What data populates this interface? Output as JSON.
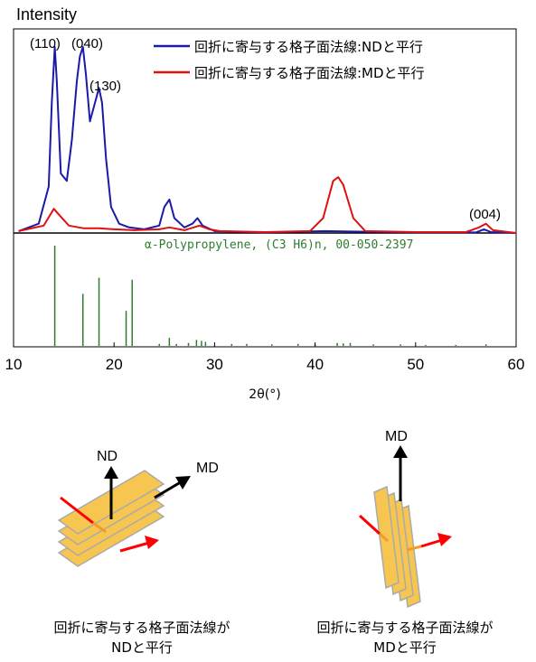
{
  "chart_data": {
    "type": "line",
    "ylabel": "Intensity",
    "xlabel": "2θ(°)",
    "xlim": [
      10,
      60
    ],
    "x_ticks": [
      "10",
      "20",
      "30",
      "40",
      "50",
      "60"
    ],
    "grid": false,
    "legend_position": "top-right",
    "series": [
      {
        "name": "回折に寄与する格子面法線:NDと平行",
        "color": "#1a1aa8",
        "x": [
          10.5,
          12.5,
          13.5,
          13.8,
          14.1,
          14.3,
          14.7,
          15.3,
          15.8,
          16.3,
          16.6,
          16.9,
          17.2,
          17.6,
          18.0,
          18.5,
          18.8,
          19.2,
          19.7,
          20.5,
          21.5,
          23.0,
          24.5,
          25.0,
          25.5,
          26.0,
          27.0,
          27.8,
          28.3,
          28.8,
          30.0,
          35.0,
          41.0,
          50.0,
          56.0,
          56.8,
          57.5,
          60.0
        ],
        "y": [
          1,
          5,
          25,
          70,
          100,
          82,
          32,
          28,
          50,
          82,
          95,
          100,
          85,
          60,
          68,
          78,
          70,
          40,
          14,
          5,
          3,
          2,
          4,
          14,
          18,
          8,
          3,
          5,
          8,
          4,
          1,
          0.3,
          1,
          0.3,
          0.3,
          2,
          0.5,
          0
        ]
      },
      {
        "name": "回折に寄与する格子面法線:MDと平行",
        "color": "#e01010",
        "x": [
          10.5,
          13.0,
          14.0,
          14.5,
          15.5,
          17.0,
          18.5,
          20.0,
          22.0,
          24.5,
          25.5,
          27.0,
          28.5,
          29.5,
          30.5,
          35.0,
          39.5,
          40.8,
          41.8,
          42.3,
          42.8,
          43.8,
          45.0,
          50.0,
          55.0,
          56.3,
          57.0,
          57.7,
          60.0
        ],
        "y": [
          1,
          4,
          13,
          10,
          4,
          2.5,
          2.5,
          2,
          1.5,
          2,
          3,
          1.5,
          4,
          2,
          1,
          0.5,
          1,
          8,
          28,
          30,
          26,
          8,
          1,
          0.5,
          0.5,
          3,
          5,
          1.5,
          0
        ]
      }
    ],
    "annotations": [
      "(110)",
      "(040)",
      "(130)",
      "(004)"
    ],
    "reference": {
      "label": "α-Polypropylene, (C3 H6)n, 00-050-2397",
      "color": "#2e7d2e",
      "lines": [
        {
          "x": 14.1,
          "h": 100
        },
        {
          "x": 16.9,
          "h": 52
        },
        {
          "x": 18.5,
          "h": 68
        },
        {
          "x": 21.2,
          "h": 35
        },
        {
          "x": 21.8,
          "h": 66
        },
        {
          "x": 25.5,
          "h": 8
        },
        {
          "x": 28.2,
          "h": 6
        },
        {
          "x": 28.7,
          "h": 5
        },
        {
          "x": 29.1,
          "h": 4
        },
        {
          "x": 24.5,
          "h": 2
        },
        {
          "x": 26.2,
          "h": 2
        },
        {
          "x": 27.4,
          "h": 3
        },
        {
          "x": 31.7,
          "h": 2
        },
        {
          "x": 33.2,
          "h": 2
        },
        {
          "x": 35.7,
          "h": 1.5
        },
        {
          "x": 38.3,
          "h": 2
        },
        {
          "x": 40.0,
          "h": 1.5
        },
        {
          "x": 42.2,
          "h": 3
        },
        {
          "x": 42.8,
          "h": 2.5
        },
        {
          "x": 43.5,
          "h": 3
        },
        {
          "x": 45.8,
          "h": 1.5
        },
        {
          "x": 48.5,
          "h": 1.5
        },
        {
          "x": 51.0,
          "h": 1
        },
        {
          "x": 54.0,
          "h": 1
        },
        {
          "x": 57.0,
          "h": 1.5
        }
      ]
    }
  },
  "diagrams": {
    "left": {
      "arrow_up_label": "ND",
      "arrow_diag_label": "MD",
      "caption_line1": "回折に寄与する格子面法線が",
      "caption_line2": "NDと平行"
    },
    "right": {
      "arrow_up_label": "MD",
      "caption_line1": "回折に寄与する格子面法線が",
      "caption_line2": "MDと平行"
    }
  }
}
